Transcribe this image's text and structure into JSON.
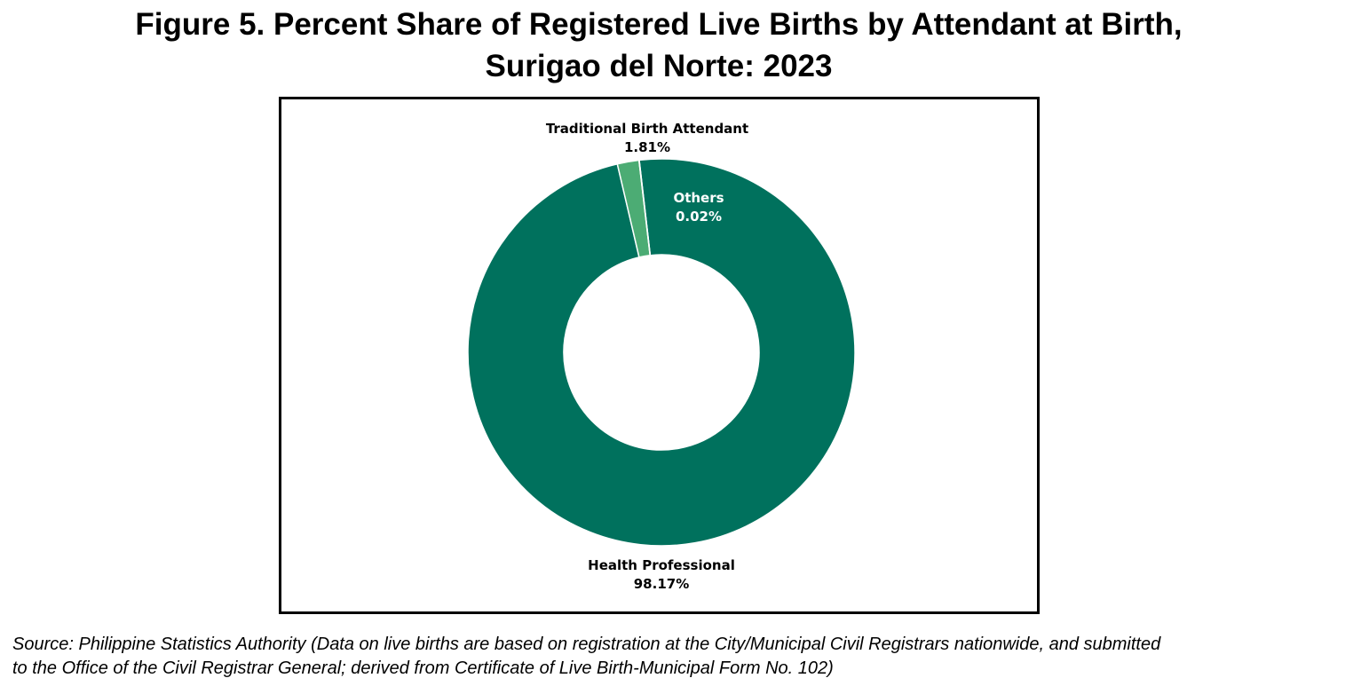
{
  "title_lines": [
    "Figure 5. Percent Share of Registered Live Births by Attendant at Birth,",
    "Surigao del Norte: 2023"
  ],
  "source_lines": [
    "Source: Philippine Statistics Authority (Data on live births are based on registration at the City/Municipal Civil Registrars nationwide, and submitted",
    "to the Office of the Civil Registrar General; derived from Certificate of Live Birth-Municipal Form No. 102)"
  ],
  "chart_data": {
    "type": "pie",
    "variant": "donut",
    "title": "Figure 5. Percent Share of Registered Live Births by Attendant at Birth, Surigao del Norte: 2023",
    "slices": [
      {
        "name": "Health Professional",
        "value": 98.17,
        "label": "98.17%",
        "color": "#00715D"
      },
      {
        "name": "Traditional Birth Attendant",
        "value": 1.81,
        "label": "1.81%",
        "color": "#4CAC74"
      },
      {
        "name": "Others",
        "value": 0.02,
        "label": "0.02%",
        "color": "#00715D"
      }
    ],
    "legend": "none",
    "data_labels": "on"
  }
}
